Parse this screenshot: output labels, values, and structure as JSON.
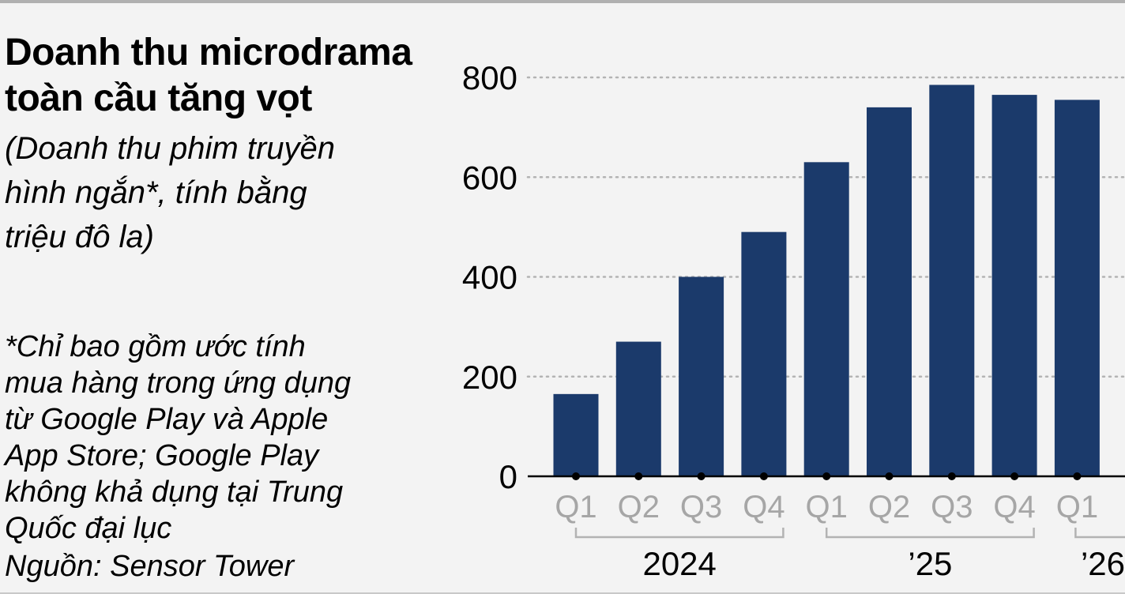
{
  "title_lines": [
    "Doanh thu microdrama",
    "toàn cầu tăng vọt"
  ],
  "subtitle_lines": [
    "(Doanh thu phim truyền",
    "hình ngắn*, tính bằng",
    "triệu đô la)"
  ],
  "note_lines": [
    "*Chỉ bao gồm ước tính",
    "mua hàng trong ứng dụng",
    "từ Google Play và Apple",
    "App Store; Google Play",
    "không khả dụng tại Trung",
    "Quốc đại lục"
  ],
  "source": "Nguồn: Sensor Tower",
  "colors": {
    "bar": "#1b3a6b",
    "grid": "#b3b3b3",
    "tick_label": "#a6a6a6",
    "bracket": "#b3b3b3"
  },
  "chart_data": {
    "type": "bar",
    "categories": [
      "Q1",
      "Q2",
      "Q3",
      "Q4",
      "Q1",
      "Q2",
      "Q3",
      "Q4",
      "Q1"
    ],
    "values": [
      165,
      270,
      400,
      490,
      630,
      740,
      785,
      765,
      755
    ],
    "groups": [
      {
        "label": "2024",
        "count": 4
      },
      {
        "label": "’25",
        "count": 4
      },
      {
        "label": "’26",
        "count": 1
      }
    ],
    "yticks": [
      0,
      200,
      400,
      600,
      800
    ],
    "ylim": [
      0,
      800
    ],
    "grid": true
  }
}
